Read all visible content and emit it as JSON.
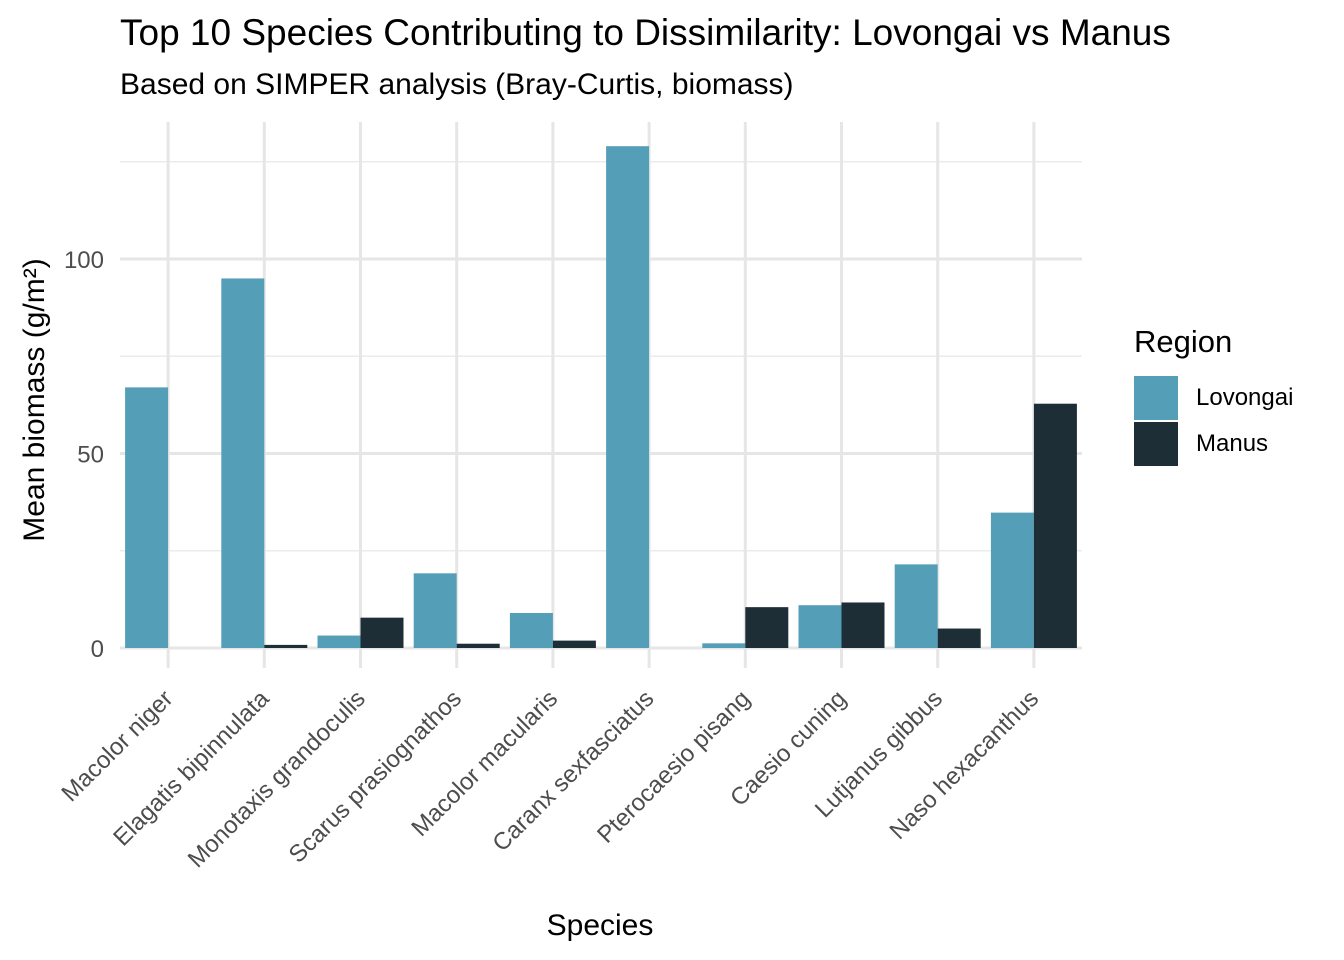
{
  "chart_data": {
    "type": "bar",
    "title": "Top 10 Species Contributing to Dissimilarity: Lovongai vs Manus",
    "subtitle": "Based on SIMPER analysis (Bray-Curtis, biomass)",
    "xlabel": "Species",
    "ylabel": "Mean biomass (g/m²)",
    "categories": [
      "Macolor niger",
      "Elagatis bipinnulata",
      "Monotaxis grandoculis",
      "Scarus prasiognathos",
      "Macolor macularis",
      "Caranx sexfasciatus",
      "Pterocaesio pisang",
      "Caesio cuning",
      "Lutjanus gibbus",
      "Naso hexacanthus"
    ],
    "series": [
      {
        "name": "Lovongai",
        "color": "#559EB8",
        "values": [
          67,
          95,
          3.2,
          19.2,
          9,
          129,
          1.2,
          11,
          21.5,
          34.8
        ]
      },
      {
        "name": "Manus",
        "color": "#1D2E36",
        "values": [
          0,
          0.8,
          7.8,
          1.1,
          1.9,
          0,
          10.5,
          11.7,
          5,
          62.8
        ]
      }
    ],
    "ylim": [
      0,
      134
    ],
    "yticks": [
      0,
      50,
      100
    ],
    "grid": true,
    "legend": {
      "title": "Region",
      "position": "right"
    }
  }
}
